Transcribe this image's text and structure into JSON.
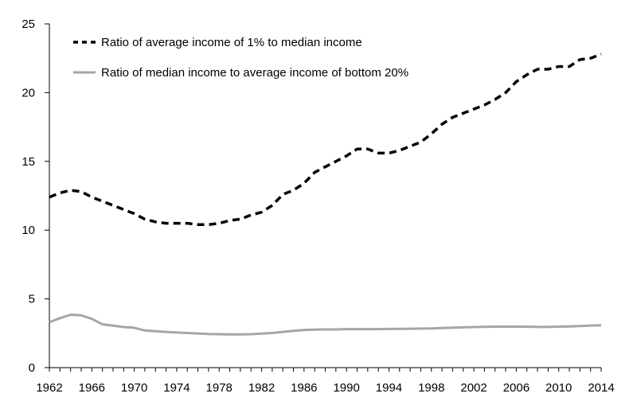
{
  "chart_data": {
    "type": "line",
    "title": "",
    "xlabel": "",
    "ylabel": "",
    "xlim": [
      1962,
      2014
    ],
    "ylim": [
      0,
      25
    ],
    "x_ticks": [
      "1962",
      "1966",
      "1970",
      "1974",
      "1978",
      "1982",
      "1986",
      "1990",
      "1994",
      "1998",
      "2002",
      "2006",
      "2010",
      "2014"
    ],
    "y_ticks": [
      "0",
      "5",
      "10",
      "15",
      "20",
      "25"
    ],
    "grid": false,
    "legend_position": "top-left",
    "x": [
      1962,
      1963,
      1964,
      1965,
      1966,
      1967,
      1968,
      1969,
      1970,
      1971,
      1972,
      1973,
      1974,
      1975,
      1976,
      1977,
      1978,
      1979,
      1980,
      1981,
      1982,
      1983,
      1984,
      1985,
      1986,
      1987,
      1988,
      1989,
      1990,
      1991,
      1992,
      1993,
      1994,
      1995,
      1996,
      1997,
      1998,
      1999,
      2000,
      2001,
      2002,
      2003,
      2004,
      2005,
      2006,
      2007,
      2008,
      2009,
      2010,
      2011,
      2012,
      2013,
      2014
    ],
    "series": [
      {
        "name": "Ratio of average income of 1% to median income",
        "style": "dashed",
        "color": "#000000",
        "values": [
          12.4,
          12.7,
          12.9,
          12.8,
          12.4,
          12.1,
          11.8,
          11.5,
          11.2,
          10.8,
          10.6,
          10.5,
          10.5,
          10.5,
          10.4,
          10.4,
          10.5,
          10.7,
          10.8,
          11.1,
          11.3,
          11.8,
          12.6,
          12.9,
          13.4,
          14.2,
          14.6,
          15.0,
          15.4,
          15.9,
          15.9,
          15.6,
          15.6,
          15.8,
          16.1,
          16.4,
          17.0,
          17.7,
          18.2,
          18.5,
          18.8,
          19.1,
          19.5,
          20.0,
          20.8,
          21.3,
          21.7,
          21.7,
          21.9,
          21.9,
          22.4,
          22.5,
          22.8
        ]
      },
      {
        "name": "Ratio of median income to average income of bottom 20%",
        "style": "solid",
        "color": "#a6a6a6",
        "values": [
          3.3,
          3.6,
          3.85,
          3.8,
          3.55,
          3.15,
          3.05,
          2.95,
          2.9,
          2.7,
          2.65,
          2.6,
          2.55,
          2.52,
          2.48,
          2.45,
          2.43,
          2.42,
          2.42,
          2.43,
          2.47,
          2.52,
          2.6,
          2.68,
          2.73,
          2.76,
          2.78,
          2.78,
          2.8,
          2.8,
          2.8,
          2.8,
          2.81,
          2.82,
          2.83,
          2.84,
          2.85,
          2.88,
          2.9,
          2.93,
          2.95,
          2.97,
          2.98,
          2.98,
          2.98,
          2.98,
          2.96,
          2.96,
          2.98,
          3.0,
          3.02,
          3.06,
          3.08
        ]
      }
    ]
  }
}
